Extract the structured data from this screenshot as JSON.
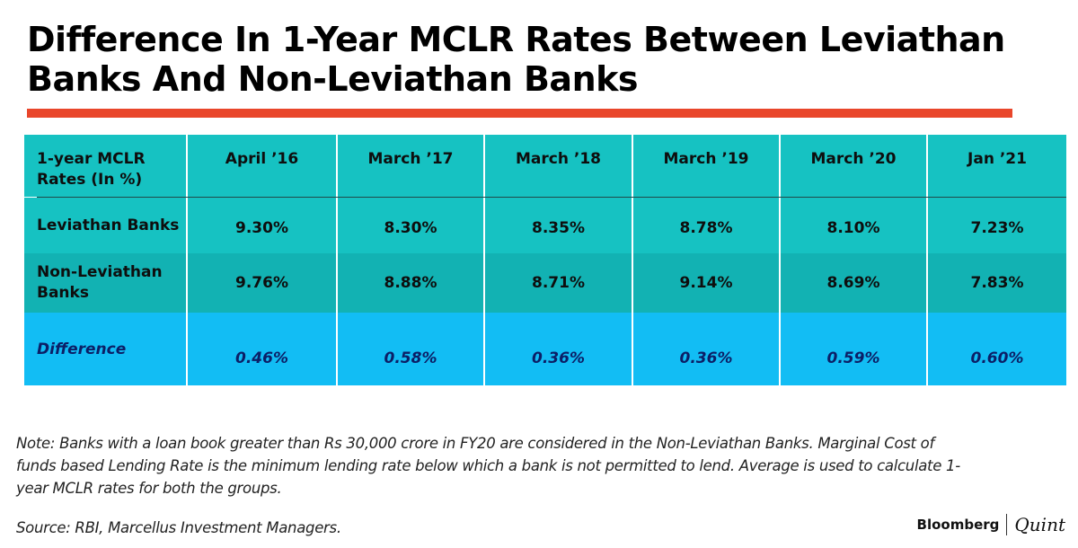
{
  "title": "Difference In 1-Year MCLR Rates Between Leviathan Banks And Non-Leviathan Banks",
  "colors": {
    "accent_rule": "#e9462b",
    "header_bg": "#16c2c2",
    "leviathan_bg": "#16c2c2",
    "non_leviathan_bg": "#12b2b3",
    "difference_bg": "#12bdf4",
    "difference_text": "#0c1f66"
  },
  "chart_data": {
    "type": "table",
    "title": "Difference In 1-Year MCLR Rates Between Leviathan Banks And Non-Leviathan Banks",
    "header_label": "1-year MCLR Rates (In %)",
    "columns": [
      "April ’16",
      "March ’17",
      "March ’18",
      "March ’19",
      "March ’20",
      "Jan ’21"
    ],
    "rows": [
      {
        "label": "Leviathan Banks",
        "values": [
          "9.30%",
          "8.30%",
          "8.35%",
          "8.78%",
          "8.10%",
          "7.23%"
        ]
      },
      {
        "label": "Non-Leviathan Banks",
        "values": [
          "9.76%",
          "8.88%",
          "8.71%",
          "9.14%",
          "8.69%",
          "7.83%"
        ]
      },
      {
        "label": "Difference",
        "values": [
          "0.46%",
          "0.58%",
          "0.36%",
          "0.36%",
          "0.59%",
          "0.60%"
        ]
      }
    ]
  },
  "note": "Note: Banks with a loan book greater than Rs 30,000 crore in FY20 are considered in the Non-Leviathan Banks. Marginal Cost of funds based Lending Rate is the minimum lending rate below which a bank is not permitted to lend. Average is used to calculate 1-year MCLR rates for both the groups.",
  "source": "Source: RBI, Marcellus Investment Managers.",
  "brand": {
    "primary": "Bloomberg",
    "secondary": "Quint"
  }
}
